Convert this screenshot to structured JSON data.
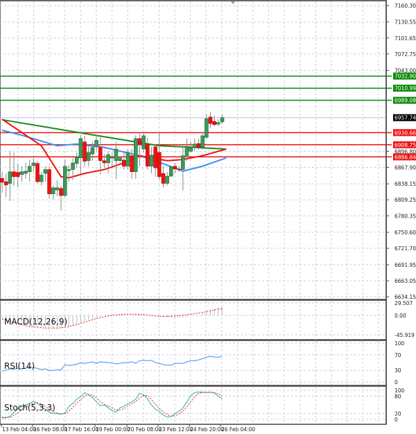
{
  "chart_data": [
    {
      "type": "candlestick",
      "panel": "main",
      "price_axis_ticks": [
        "7160.30",
        "7130.55",
        "7101.65",
        "7072.75",
        "7043.00",
        "6896.80",
        "6867.90",
        "6838.15",
        "6809.25",
        "6780.35",
        "6750.60",
        "6721.70",
        "6691.95",
        "6663.05",
        "6634.15"
      ],
      "ylim": [
        6634.15,
        7160.3
      ],
      "time_axis_labels": [
        "13 Feb 04:00",
        "16 Feb 08:00",
        "17 Feb 16:00",
        "19 Feb 00:00",
        "20 Feb 08:00",
        "23 Feb 12:00",
        "24 Feb 20:00",
        "26 Feb 04:00"
      ],
      "ohlc": [
        [
          6848,
          6860,
          6822,
          6841
        ],
        [
          6842,
          6857,
          6814,
          6836
        ],
        [
          6839,
          6897,
          6807,
          6860
        ],
        [
          6860,
          6895,
          6835,
          6851
        ],
        [
          6859,
          6875,
          6832,
          6851
        ],
        [
          6855,
          6870,
          6842,
          6860
        ],
        [
          6857,
          6876,
          6847,
          6861
        ],
        [
          6860,
          6882,
          6842,
          6870
        ],
        [
          6871,
          6885,
          6860,
          6876
        ],
        [
          6875,
          6879,
          6839,
          6842
        ],
        [
          6842,
          6860,
          6835,
          6854
        ],
        [
          6857,
          6870,
          6842,
          6864
        ],
        [
          6864,
          6870,
          6812,
          6820
        ],
        [
          6820,
          6835,
          6810,
          6831
        ],
        [
          6827,
          6845,
          6816,
          6831
        ],
        [
          6830,
          6835,
          6790,
          6817
        ],
        [
          6817,
          6882,
          6814,
          6870
        ],
        [
          6862,
          6872,
          6842,
          6864
        ],
        [
          6864,
          6885,
          6845,
          6876
        ],
        [
          6875,
          6895,
          6867,
          6887
        ],
        [
          6885,
          6926,
          6857,
          6920
        ],
        [
          6914,
          6925,
          6870,
          6879
        ],
        [
          6880,
          6907,
          6870,
          6895
        ],
        [
          6892,
          6914,
          6880,
          6904
        ],
        [
          6905,
          6927,
          6897,
          6917
        ],
        [
          6904,
          6922,
          6855,
          6880
        ],
        [
          6880,
          6892,
          6867,
          6876
        ],
        [
          6876,
          6897,
          6857,
          6891
        ],
        [
          6885,
          6895,
          6870,
          6886
        ],
        [
          6880,
          6914,
          6847,
          6901
        ],
        [
          6880,
          6889,
          6876,
          6885
        ],
        [
          6881,
          6895,
          6864,
          6870
        ],
        [
          6870,
          6901,
          6864,
          6895
        ],
        [
          6889,
          6901,
          6847,
          6860
        ],
        [
          6860,
          6926,
          6847,
          6920
        ],
        [
          6920,
          6929,
          6870,
          6910
        ],
        [
          6901,
          6930,
          6895,
          6925
        ],
        [
          6910,
          6922,
          6864,
          6870
        ],
        [
          6870,
          6905,
          6857,
          6890
        ],
        [
          6905,
          6910,
          6851,
          6867
        ],
        [
          6895,
          6932,
          6845,
          6851
        ],
        [
          6857,
          6870,
          6832,
          6839
        ],
        [
          6839,
          6860,
          6835,
          6852
        ],
        [
          6852,
          6870,
          6851,
          6869
        ],
        [
          6870,
          6876,
          6857,
          6865
        ],
        [
          6865,
          6870,
          6860,
          6864
        ],
        [
          6864,
          6904,
          6826,
          6889
        ],
        [
          6889,
          6920,
          6880,
          6906
        ],
        [
          6897,
          6914,
          6895,
          6904
        ],
        [
          6904,
          6920,
          6897,
          6910
        ],
        [
          6911,
          6920,
          6900,
          6904
        ],
        [
          6904,
          6932,
          6900,
          6925
        ],
        [
          6922,
          6964,
          6920,
          6956
        ],
        [
          6959,
          6967,
          6939,
          6947
        ],
        [
          6951,
          6962,
          6942,
          6945
        ],
        [
          6946,
          6955,
          6942,
          6949
        ],
        [
          6950,
          6964,
          6947,
          6957.74
        ]
      ],
      "moving_averages": [
        {
          "color": "#1a8a1a",
          "points": [
            [
              0,
              6954
            ],
            [
              21,
              6929
            ],
            [
              40,
              6907
            ],
            [
              46,
              6905
            ],
            [
              57,
              6901
            ]
          ]
        },
        {
          "color": "#3d8ef0",
          "points": [
            [
              0,
              6935
            ],
            [
              5,
              6926
            ],
            [
              14,
              6907
            ],
            [
              19,
              6910
            ],
            [
              26,
              6904
            ],
            [
              35,
              6889
            ],
            [
              42,
              6872
            ],
            [
              46,
              6861
            ],
            [
              51,
              6870
            ],
            [
              57,
              6885
            ]
          ]
        },
        {
          "color": "#ee1111",
          "points": [
            [
              0,
              6955
            ],
            [
              10,
              6907
            ],
            [
              15,
              6851
            ],
            [
              17,
              6849
            ],
            [
              21,
              6857
            ],
            [
              26,
              6864
            ],
            [
              31,
              6876
            ],
            [
              35,
              6889
            ],
            [
              38,
              6885
            ],
            [
              42,
              6880
            ],
            [
              46,
              6882
            ],
            [
              51,
              6889
            ],
            [
              54,
              6895
            ],
            [
              57,
              6901
            ]
          ]
        }
      ],
      "levels": [
        {
          "value": "7032.90",
          "color": "#0a8a0a"
        },
        {
          "value": "7010.99",
          "color": "#0a8a0a"
        },
        {
          "value": "6989.08",
          "color": "#0a8a0a"
        },
        {
          "value": "6930.66",
          "color": "#ee1111"
        },
        {
          "value": "6908.75",
          "color": "#ee1111"
        },
        {
          "value": "6886.84",
          "color": "#ee1111"
        }
      ],
      "current_price": "6957.74",
      "colors": {
        "bull": "#3a9a5a",
        "bear": "#ee1111",
        "wick": "#888888",
        "grid": "#c5cfe0"
      }
    },
    {
      "type": "bar",
      "panel": "macd",
      "label": "MACD(12,26,9)",
      "axis_ticks": [
        "29.507",
        "0.00",
        "-45.919"
      ],
      "ylim": [
        -45.919,
        29.507
      ],
      "histogram": [
        -6,
        -10,
        -14,
        -17,
        -20,
        -22,
        -24,
        -25,
        -26,
        -27,
        -28,
        -29,
        -29,
        -30,
        -30,
        -30,
        -30,
        -28,
        -25,
        -22,
        -18,
        -14,
        -10,
        -7,
        -4,
        -2,
        0,
        1,
        2,
        2,
        3,
        3,
        3,
        2,
        2,
        2,
        1,
        0,
        -1,
        -2,
        -3,
        -4,
        -5,
        -5,
        -6,
        -6,
        -5,
        -3,
        -1,
        1,
        3,
        6,
        10,
        13,
        16,
        18,
        20
      ],
      "signal": [
        -8,
        -11,
        -14,
        -17,
        -20,
        -22,
        -24,
        -26,
        -27,
        -28,
        -29,
        -30,
        -30,
        -30,
        -30,
        -29,
        -28,
        -26,
        -24,
        -22,
        -19,
        -16,
        -13,
        -10,
        -7,
        -5,
        -3,
        -1,
        0,
        1,
        2,
        3,
        3,
        3,
        3,
        2,
        2,
        1,
        0,
        -1,
        -2,
        -2,
        -2,
        -2,
        -1,
        0,
        1,
        2,
        3,
        4,
        6,
        7,
        9,
        11,
        13,
        15,
        16
      ]
    },
    {
      "type": "line",
      "panel": "rsi",
      "label": "RSI(14)",
      "axis_ticks": [
        "100",
        "70",
        "30",
        "0"
      ],
      "ylim": [
        0,
        100
      ],
      "values": [
        28,
        30,
        34,
        33,
        35,
        34,
        36,
        36,
        37,
        35,
        32,
        34,
        30,
        30,
        31,
        31,
        45,
        42,
        44,
        46,
        49,
        48,
        50,
        52,
        48,
        52,
        51,
        50,
        49,
        47,
        48,
        50,
        50,
        52,
        48,
        55,
        56,
        55,
        56,
        50,
        48,
        45,
        44,
        43,
        48,
        48,
        48,
        52,
        55,
        55,
        57,
        60,
        64,
        66,
        64,
        64,
        66
      ],
      "color": "#3d8ef0"
    },
    {
      "type": "line",
      "panel": "stoch",
      "label": "Stoch(5,3,3)",
      "axis_ticks": [
        "100",
        "80",
        "20",
        "0"
      ],
      "ylim": [
        0,
        100
      ],
      "main": [
        5,
        6,
        10,
        25,
        35,
        45,
        50,
        55,
        62,
        55,
        45,
        35,
        25,
        20,
        20,
        18,
        22,
        45,
        55,
        70,
        78,
        92,
        85,
        75,
        60,
        47,
        50,
        40,
        30,
        25,
        40,
        45,
        55,
        60,
        70,
        90,
        85,
        70,
        50,
        35,
        28,
        15,
        8,
        10,
        20,
        28,
        40,
        60,
        82,
        92,
        94,
        94,
        92,
        94,
        90,
        80,
        70
      ],
      "signal": [
        8,
        7,
        7,
        14,
        23,
        33,
        43,
        50,
        56,
        57,
        54,
        45,
        35,
        27,
        22,
        19,
        20,
        28,
        41,
        57,
        68,
        80,
        85,
        84,
        73,
        61,
        52,
        46,
        40,
        32,
        32,
        37,
        47,
        53,
        62,
        73,
        82,
        82,
        68,
        52,
        38,
        26,
        17,
        11,
        13,
        19,
        29,
        43,
        61,
        78,
        89,
        93,
        93,
        93,
        92,
        88,
        80
      ],
      "colors": {
        "main": "#20b2aa",
        "signal": "#ee1111"
      }
    }
  ]
}
